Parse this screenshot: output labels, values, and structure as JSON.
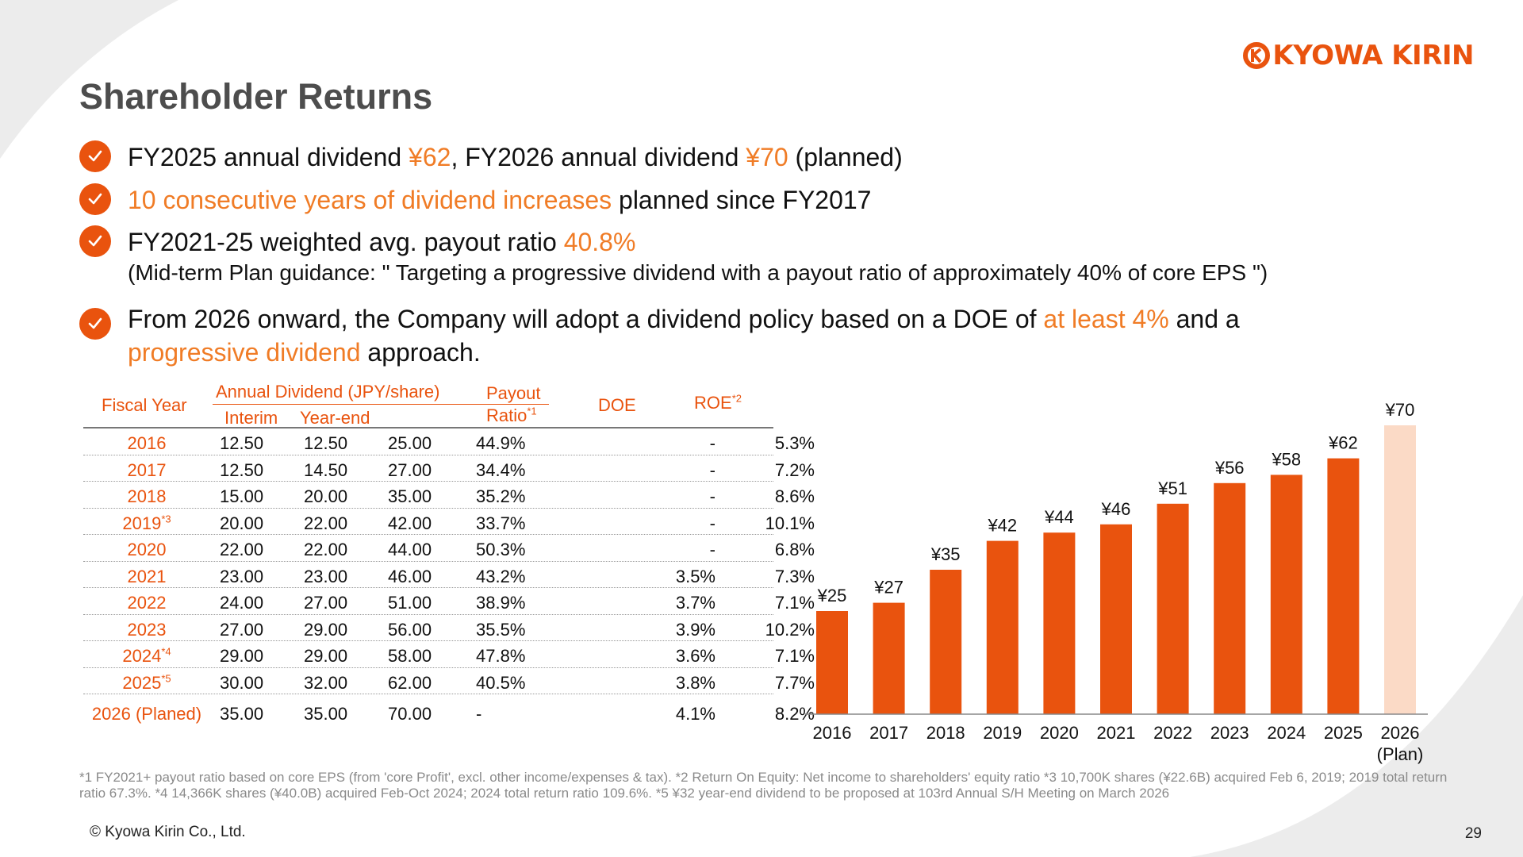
{
  "brand": {
    "logo_text": "KYOWA KIRIN",
    "accent": "#e9530e",
    "accent_text": "#f07c26",
    "plan_bar_color": "#fbdac6"
  },
  "title": "Shareholder Returns",
  "bullets": [
    {
      "parts": [
        {
          "text": "FY2025 annual dividend ",
          "hl": false
        },
        {
          "text": "¥62",
          "hl": true
        },
        {
          "text": ", FY2026 annual dividend ",
          "hl": false
        },
        {
          "text": "¥70",
          "hl": true
        },
        {
          "text": " (planned)",
          "hl": false
        }
      ]
    },
    {
      "parts": [
        {
          "text": "10 consecutive years of dividend increases",
          "hl": true
        },
        {
          "text": " planned since FY2017",
          "hl": false
        }
      ]
    },
    {
      "parts": [
        {
          "text": "FY2021-25 weighted avg. payout ratio ",
          "hl": false
        },
        {
          "text": "40.8%",
          "hl": true
        }
      ],
      "sub": "(Mid-term Plan guidance: \" Targeting a progressive dividend with a payout ratio of approximately 40% of core EPS \")"
    },
    {
      "parts": [
        {
          "text": "From 2026 onward, the Company will adopt a dividend policy based on a DOE of ",
          "hl": false
        },
        {
          "text": "at least 4%",
          "hl": true
        },
        {
          "text": " and a ",
          "hl": false
        },
        {
          "text": "progressive dividend",
          "hl": true
        },
        {
          "text": " approach.",
          "hl": false
        }
      ]
    }
  ],
  "table": {
    "headers": {
      "fiscal_year": "Fiscal Year",
      "annual_dividend": "Annual Dividend (JPY/share)",
      "interim": "Interim",
      "year_end": "Year-end",
      "payout_1": "Payout",
      "payout_2": "Ratio",
      "payout_note": "*1",
      "doe": "DOE",
      "roe": "ROE",
      "roe_note": "*2"
    },
    "rows": [
      {
        "fy": "2016",
        "note": "",
        "interim": "12.50",
        "year_end": "12.50",
        "total": "25.00",
        "payout": "44.9%",
        "doe": "-",
        "roe": "5.3%"
      },
      {
        "fy": "2017",
        "note": "",
        "interim": "12.50",
        "year_end": "14.50",
        "total": "27.00",
        "payout": "34.4%",
        "doe": "-",
        "roe": "7.2%"
      },
      {
        "fy": "2018",
        "note": "",
        "interim": "15.00",
        "year_end": "20.00",
        "total": "35.00",
        "payout": "35.2%",
        "doe": "-",
        "roe": "8.6%"
      },
      {
        "fy": "2019",
        "note": "*3",
        "interim": "20.00",
        "year_end": "22.00",
        "total": "42.00",
        "payout": "33.7%",
        "doe": "-",
        "roe": "10.1%"
      },
      {
        "fy": "2020",
        "note": "",
        "interim": "22.00",
        "year_end": "22.00",
        "total": "44.00",
        "payout": "50.3%",
        "doe": "-",
        "roe": "6.8%"
      },
      {
        "fy": "2021",
        "note": "",
        "interim": "23.00",
        "year_end": "23.00",
        "total": "46.00",
        "payout": "43.2%",
        "doe": "3.5%",
        "roe": "7.3%"
      },
      {
        "fy": "2022",
        "note": "",
        "interim": "24.00",
        "year_end": "27.00",
        "total": "51.00",
        "payout": "38.9%",
        "doe": "3.7%",
        "roe": "7.1%"
      },
      {
        "fy": "2023",
        "note": "",
        "interim": "27.00",
        "year_end": "29.00",
        "total": "56.00",
        "payout": "35.5%",
        "doe": "3.9%",
        "roe": "10.2%"
      },
      {
        "fy": "2024",
        "note": "*4",
        "interim": "29.00",
        "year_end": "29.00",
        "total": "58.00",
        "payout": "47.8%",
        "doe": "3.6%",
        "roe": "7.1%"
      },
      {
        "fy": "2025",
        "note": "*5",
        "interim": "30.00",
        "year_end": "32.00",
        "total": "62.00",
        "payout": "40.5%",
        "doe": "3.8%",
        "roe": "7.7%"
      },
      {
        "fy": "2026 (Planed)",
        "note": "",
        "interim": "35.00",
        "year_end": "35.00",
        "total": "70.00",
        "payout": "-",
        "doe": "4.1%",
        "roe": "8.2%"
      }
    ]
  },
  "chart_data": {
    "type": "bar",
    "categories": [
      "2016",
      "2017",
      "2018",
      "2019",
      "2020",
      "2021",
      "2022",
      "2023",
      "2024",
      "2025",
      "2026\n(Plan)"
    ],
    "values": [
      25,
      27,
      35,
      42,
      44,
      46,
      51,
      56,
      58,
      62,
      70
    ],
    "data_labels": [
      "¥25",
      "¥27",
      "¥35",
      "¥42",
      "¥44",
      "¥46",
      "¥51",
      "¥56",
      "¥58",
      "¥62",
      "¥70"
    ],
    "title": "",
    "xlabel": "",
    "ylabel": "",
    "ylim": [
      0,
      75
    ],
    "grid": false,
    "bar_color": "#e9530e",
    "highlight": {
      "index": 10,
      "color": "#fbdac6"
    }
  },
  "footnote": "*1 FY2021+ payout ratio based on core EPS (from 'core Profit', excl. other income/expenses & tax).  *2 Return On Equity: Net income to shareholders' equity ratio  *3 10,700K shares (¥22.6B) acquired Feb 6, 2019; 2019 total return ratio 67.3%.  *4 14,366K shares (¥40.0B) acquired Feb-Oct 2024; 2024 total return ratio 109.6%.  *5 ¥32 year-end dividend to be proposed at 103rd Annual S/H Meeting on March 2026",
  "copyright": "© Kyowa Kirin Co., Ltd.",
  "page_number": "29"
}
